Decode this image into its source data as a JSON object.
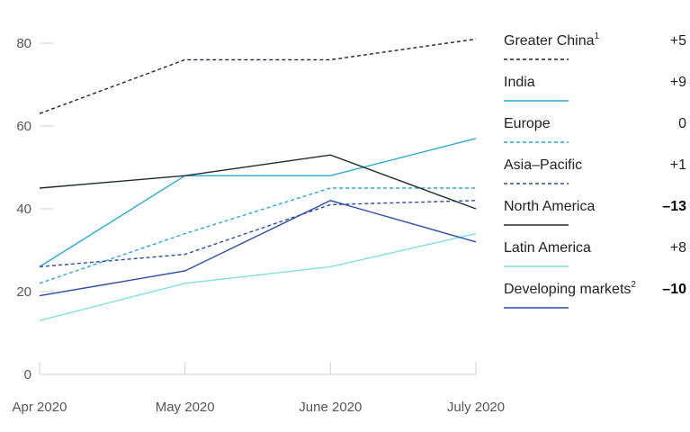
{
  "chart_data": {
    "type": "line",
    "title": "",
    "xlabel": "",
    "ylabel": "",
    "categories": [
      "Apr 2020",
      "May 2020",
      "June 2020",
      "July 2020"
    ],
    "ylim": [
      0,
      80
    ],
    "yticks": [
      0,
      20,
      40,
      60,
      80
    ],
    "grid": false,
    "legend_position": "right",
    "series": [
      {
        "name": "Greater China",
        "superscript": "1",
        "change": "+5",
        "bold": false,
        "color": "#1a2440",
        "style": "dashed",
        "values": [
          63,
          76,
          76,
          81
        ]
      },
      {
        "name": "India",
        "superscript": "",
        "change": "+9",
        "bold": false,
        "color": "#2aa8d4",
        "style": "solid",
        "values": [
          26,
          48,
          48,
          57
        ]
      },
      {
        "name": "Europe",
        "superscript": "",
        "change": "0",
        "bold": false,
        "color": "#2aa8d4",
        "style": "dashed",
        "values": [
          22,
          34,
          45,
          45
        ]
      },
      {
        "name": "Asia–Pacific",
        "superscript": "",
        "change": "+1",
        "bold": false,
        "color": "#2d4aa8",
        "style": "dashed",
        "values": [
          26,
          29,
          41,
          42
        ]
      },
      {
        "name": "North America",
        "superscript": "",
        "change": "–13",
        "bold": true,
        "color": "#1f2a33",
        "style": "solid",
        "values": [
          45,
          48,
          53,
          40
        ]
      },
      {
        "name": "Latin America",
        "superscript": "",
        "change": "+8",
        "bold": false,
        "color": "#7fe0e0",
        "style": "solid",
        "values": [
          13,
          22,
          26,
          34
        ]
      },
      {
        "name": "Developing markets",
        "superscript": "2",
        "change": "–10",
        "bold": true,
        "color": "#2d4aa8",
        "style": "solid",
        "values": [
          19,
          25,
          42,
          32
        ]
      }
    ]
  }
}
